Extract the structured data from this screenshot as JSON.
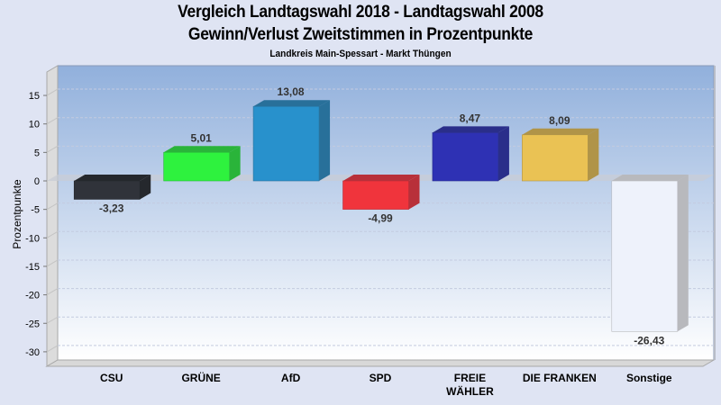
{
  "header": {
    "title_line1": "Vergleich Landtagswahl 2018 - Landtagswahl 2008",
    "title_line2": "Gewinn/Verlust Zweitstimmen in Prozentpunkte",
    "subtitle": "Landkreis Main-Spessart - Markt Thüngen"
  },
  "chart_data": {
    "type": "bar",
    "title": "Vergleich Landtagswahl 2018 - Landtagswahl 2008 / Gewinn/Verlust Zweitstimmen in Prozentpunkte",
    "subtitle": "Landkreis Main-Spessart - Markt Thüngen",
    "xlabel": "",
    "ylabel": "Prozentpunkte",
    "ylim": [
      -31,
      18
    ],
    "yticks": [
      15,
      10,
      5,
      0,
      -5,
      -10,
      -15,
      -20,
      -25,
      -30
    ],
    "grid": true,
    "categories": [
      "CSU",
      "GRÜNE",
      "AfD",
      "SPD",
      "FREIE WÄHLER",
      "DIE FRANKEN",
      "Sonstige"
    ],
    "category_lines": [
      [
        "CSU"
      ],
      [
        "GRÜNE"
      ],
      [
        "AfD"
      ],
      [
        "SPD"
      ],
      [
        "FREIE",
        "WÄHLER"
      ],
      [
        "DIE FRANKEN"
      ],
      [
        "Sonstige"
      ]
    ],
    "values": [
      -3.23,
      5.01,
      13.08,
      -4.99,
      8.47,
      8.09,
      -26.43
    ],
    "value_labels": [
      "-3,23",
      "5,01",
      "13,08",
      "-4,99",
      "8,47",
      "8,09",
      "-26,43"
    ],
    "colors": [
      "#30333a",
      "#2ef23e",
      "#2891cc",
      "#f0343c",
      "#2e31b4",
      "#eac254",
      "#eef2fb"
    ],
    "side_colors": [
      "#25282d",
      "#2ab43a",
      "#28709a",
      "#b8303a",
      "#2a2e8a",
      "#b09448",
      "#b8b9bd"
    ]
  }
}
